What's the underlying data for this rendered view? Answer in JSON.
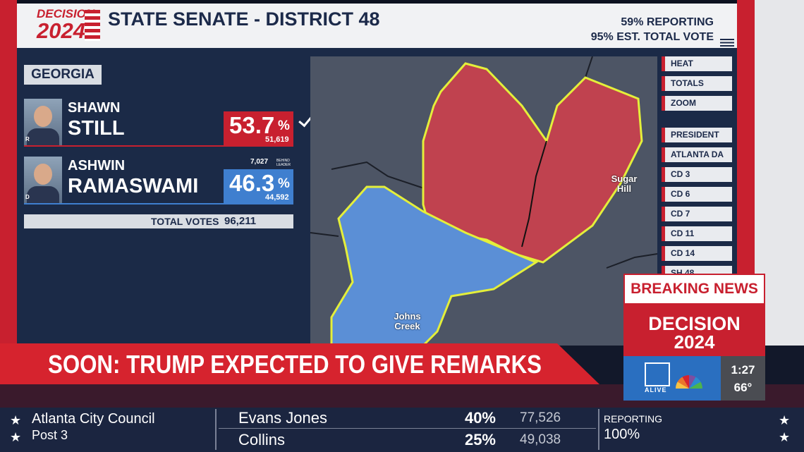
{
  "header": {
    "logo_top": "DECISION",
    "logo_year": "2024",
    "title": "STATE SENATE - DISTRICT 48",
    "reporting": "59% REPORTING",
    "est_vote": "95% EST. TOTAL VOTE"
  },
  "race": {
    "state": "GEORGIA",
    "candidates": [
      {
        "first": "SHAWN",
        "last": "STILL",
        "party": "R",
        "pct": "53.7",
        "pct_unit": "%",
        "votes": "51,619"
      },
      {
        "first": "ASHWIN",
        "last": "RAMASWAMI",
        "party": "D",
        "pct": "46.3",
        "pct_unit": "%",
        "votes": "44,592",
        "behind": "7,027",
        "behind_label": "BEHIND LEADER"
      }
    ],
    "total_label": "TOTAL VOTES",
    "total": "96,211"
  },
  "map": {
    "labels": [
      "Sugar Hill",
      "Johns Creek"
    ]
  },
  "menu": {
    "views": [
      "HEAT",
      "TOTALS",
      "ZOOM"
    ],
    "races": [
      "PRESIDENT",
      "ATLANTA DA",
      "CD 3",
      "CD 6",
      "CD 7",
      "CD 11",
      "CD 14",
      "SH 48"
    ]
  },
  "breaking": {
    "label": "BREAKING NEWS",
    "brand_top": "DECISION",
    "brand_year": "2024",
    "station": "ALIVE",
    "time": "1:27",
    "temp": "66°"
  },
  "banner": "SOON: TRUMP EXPECTED TO GIVE REMARKS",
  "ticker": {
    "race": "Atlanta City Council",
    "seat": "Post 3",
    "results": [
      {
        "name": "Evans Jones",
        "pct": "40%",
        "votes": "77,526"
      },
      {
        "name": "Collins",
        "pct": "25%",
        "votes": "49,038"
      }
    ],
    "reporting_label": "REPORTING",
    "reporting": "100%"
  }
}
